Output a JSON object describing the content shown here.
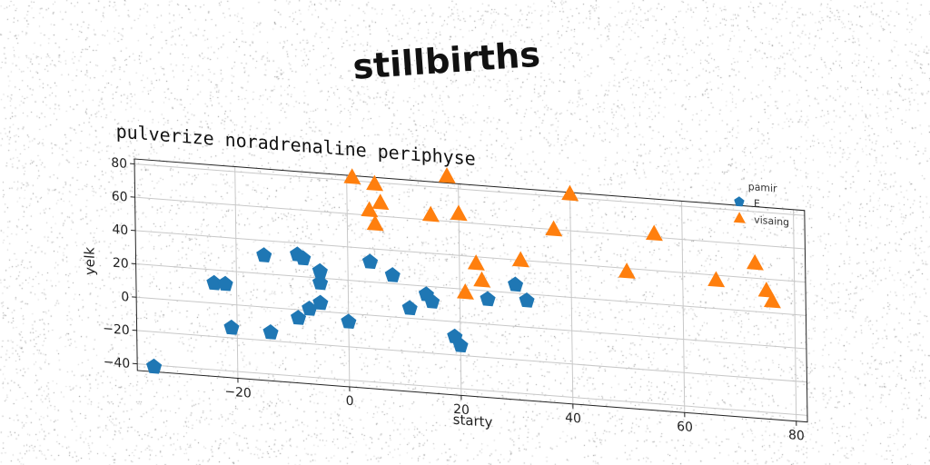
{
  "page_title": "stillbirths",
  "colors": {
    "series_E": "#1f77b4",
    "series_visaing": "#ff7f0e",
    "grid": "#c8c8c8",
    "axis": "#222222"
  },
  "chart_data": {
    "type": "scatter",
    "title": "pulverize noradrenaline periphyse",
    "xlabel": "starty",
    "ylabel": "yelk",
    "xlim": [
      -38,
      82
    ],
    "ylim": [
      -44,
      83
    ],
    "xticks": [
      -20,
      0,
      20,
      40,
      60,
      80
    ],
    "yticks": [
      -40,
      -20,
      0,
      20,
      40,
      60,
      80
    ],
    "grid": true,
    "legend": {
      "title": "pamir",
      "placement": "top-right"
    },
    "series": [
      {
        "name": "E",
        "marker": "pentagon",
        "color": "#1f77b4",
        "points": [
          [
            -35,
            -41
          ],
          [
            -24,
            12
          ],
          [
            -22,
            12
          ],
          [
            -21,
            -14
          ],
          [
            -15,
            31
          ],
          [
            -14,
            -15
          ],
          [
            -9,
            33
          ],
          [
            -8,
            31
          ],
          [
            -9,
            -5
          ],
          [
            -7,
            1
          ],
          [
            -5,
            24
          ],
          [
            -5,
            17
          ],
          [
            -5,
            5
          ],
          [
            0,
            -5
          ],
          [
            4,
            32
          ],
          [
            8,
            25
          ],
          [
            11,
            6
          ],
          [
            14,
            15
          ],
          [
            15,
            11
          ],
          [
            19,
            -9
          ],
          [
            20,
            -14
          ],
          [
            25,
            15
          ],
          [
            30,
            25
          ],
          [
            32,
            16
          ]
        ]
      },
      {
        "name": "visaing",
        "marker": "triangle",
        "color": "#ff7f0e",
        "points": [
          [
            1,
            82
          ],
          [
            5,
            79
          ],
          [
            4,
            63
          ],
          [
            6,
            68
          ],
          [
            5,
            55
          ],
          [
            15,
            63
          ],
          [
            18,
            87
          ],
          [
            20,
            65
          ],
          [
            21,
            18
          ],
          [
            23,
            36
          ],
          [
            24,
            26
          ],
          [
            31,
            40
          ],
          [
            37,
            60
          ],
          [
            40,
            82
          ],
          [
            50,
            38
          ],
          [
            55,
            62
          ],
          [
            66,
            37
          ],
          [
            73,
            49
          ],
          [
            75,
            33
          ],
          [
            76,
            27
          ]
        ]
      }
    ]
  }
}
